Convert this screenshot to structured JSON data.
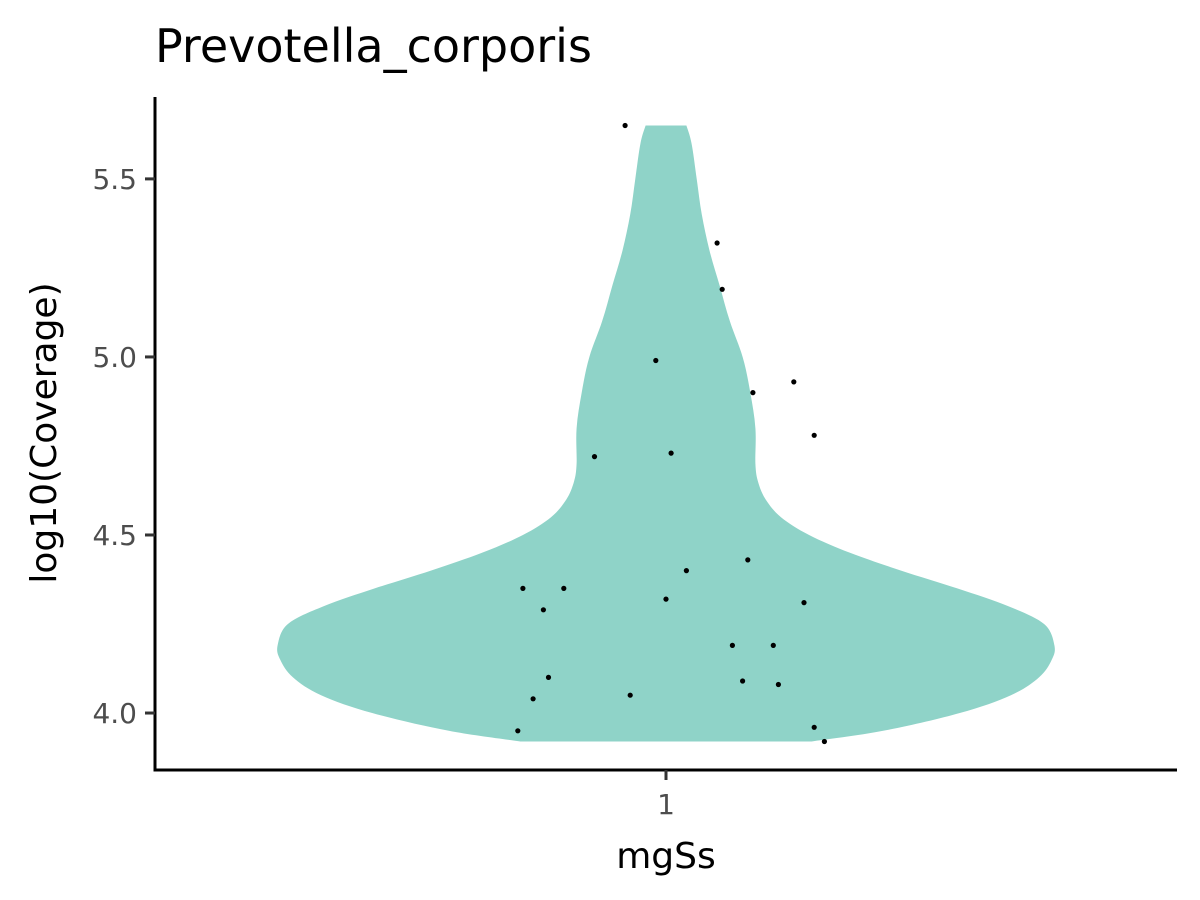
{
  "chart_data": {
    "type": "violin",
    "title": "Prevotella_corporis",
    "xlabel": "mgSs",
    "ylabel": "log10(Coverage)",
    "categories": [
      "1"
    ],
    "ylim": [
      3.84,
      5.73
    ],
    "yticks": [
      4.0,
      4.5,
      5.0,
      5.5
    ],
    "ytick_labels": [
      "4.0",
      "4.5",
      "5.0",
      "5.5"
    ],
    "fill_color": "#8fd3c8",
    "point_color": "#000000",
    "grid": false,
    "legend": "none",
    "points": [
      {
        "x": 0.92,
        "y": 5.65
      },
      {
        "x": 1.1,
        "y": 5.32
      },
      {
        "x": 1.11,
        "y": 5.19
      },
      {
        "x": 0.98,
        "y": 4.99
      },
      {
        "x": 1.25,
        "y": 4.93
      },
      {
        "x": 1.17,
        "y": 4.9
      },
      {
        "x": 1.29,
        "y": 4.78
      },
      {
        "x": 1.01,
        "y": 4.73
      },
      {
        "x": 0.86,
        "y": 4.72
      },
      {
        "x": 1.16,
        "y": 4.43
      },
      {
        "x": 1.04,
        "y": 4.4
      },
      {
        "x": 0.72,
        "y": 4.35
      },
      {
        "x": 0.8,
        "y": 4.35
      },
      {
        "x": 1.0,
        "y": 4.32
      },
      {
        "x": 1.27,
        "y": 4.31
      },
      {
        "x": 0.76,
        "y": 4.29
      },
      {
        "x": 1.13,
        "y": 4.19
      },
      {
        "x": 1.21,
        "y": 4.19
      },
      {
        "x": 0.77,
        "y": 4.1
      },
      {
        "x": 1.15,
        "y": 4.09
      },
      {
        "x": 1.22,
        "y": 4.08
      },
      {
        "x": 0.93,
        "y": 4.05
      },
      {
        "x": 0.74,
        "y": 4.04
      },
      {
        "x": 1.29,
        "y": 3.96
      },
      {
        "x": 0.71,
        "y": 3.95
      },
      {
        "x": 1.31,
        "y": 3.92
      }
    ],
    "density_profile": [
      {
        "y": 3.92,
        "w": 0.57
      },
      {
        "y": 3.95,
        "w": 0.85
      },
      {
        "y": 4.0,
        "w": 1.15
      },
      {
        "y": 4.05,
        "w": 1.35
      },
      {
        "y": 4.1,
        "w": 1.46
      },
      {
        "y": 4.15,
        "w": 1.51
      },
      {
        "y": 4.19,
        "w": 1.52
      },
      {
        "y": 4.25,
        "w": 1.48
      },
      {
        "y": 4.3,
        "w": 1.34
      },
      {
        "y": 4.35,
        "w": 1.14
      },
      {
        "y": 4.4,
        "w": 0.92
      },
      {
        "y": 4.45,
        "w": 0.72
      },
      {
        "y": 4.5,
        "w": 0.56
      },
      {
        "y": 4.55,
        "w": 0.45
      },
      {
        "y": 4.6,
        "w": 0.39
      },
      {
        "y": 4.65,
        "w": 0.36
      },
      {
        "y": 4.7,
        "w": 0.35
      },
      {
        "y": 4.8,
        "w": 0.35
      },
      {
        "y": 4.9,
        "w": 0.33
      },
      {
        "y": 5.0,
        "w": 0.3
      },
      {
        "y": 5.1,
        "w": 0.25
      },
      {
        "y": 5.2,
        "w": 0.21
      },
      {
        "y": 5.3,
        "w": 0.17
      },
      {
        "y": 5.4,
        "w": 0.14
      },
      {
        "y": 5.5,
        "w": 0.12
      },
      {
        "y": 5.6,
        "w": 0.1
      },
      {
        "y": 5.65,
        "w": 0.08
      }
    ]
  }
}
